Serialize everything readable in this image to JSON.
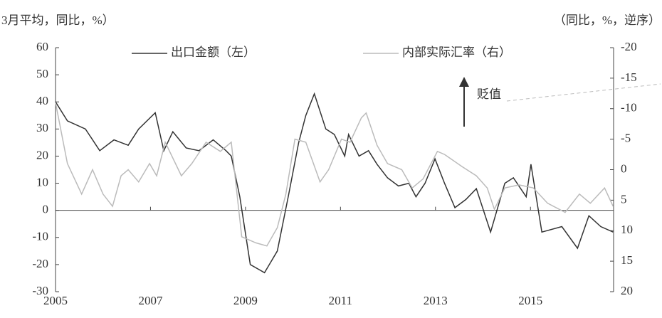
{
  "chart_data": {
    "type": "line",
    "title_left": "3月平均，同比，%）",
    "title_right": "（同比，%，逆序）",
    "annotation": "贬值",
    "xlim": [
      2005,
      2016.75
    ],
    "xticks": [
      2005,
      2007,
      2009,
      2011,
      2013,
      2015
    ],
    "ylim": [
      -30,
      60
    ],
    "yticks": [
      -30,
      -20,
      -10,
      0,
      10,
      20,
      30,
      40,
      50,
      60
    ],
    "y2lim": [
      -20,
      20
    ],
    "y2ticks": [
      -20,
      -15,
      -10,
      -5,
      0,
      5,
      10,
      15,
      20
    ],
    "y2_reversed": true,
    "series": [
      {
        "name": "出口金额（左）",
        "color": "#333333",
        "x": [
          2005.0,
          2005.25,
          2005.63,
          2005.93,
          2006.23,
          2006.53,
          2006.75,
          2007.1,
          2007.28,
          2007.47,
          2007.75,
          2008.02,
          2008.32,
          2008.59,
          2008.7,
          2008.88,
          2009.1,
          2009.4,
          2009.67,
          2009.9,
          2010.12,
          2010.27,
          2010.45,
          2010.69,
          2010.87,
          2011.09,
          2011.17,
          2011.39,
          2011.59,
          2011.77,
          2011.99,
          2012.22,
          2012.44,
          2012.59,
          2012.78,
          2012.99,
          2013.19,
          2013.41,
          2013.64,
          2013.86,
          2014.16,
          2014.46,
          2014.64,
          2014.91,
          2015.01,
          2015.24,
          2015.66,
          2015.99,
          2016.23,
          2016.48,
          2016.74
        ],
        "values": [
          40,
          33,
          30,
          22,
          26,
          24,
          30,
          36,
          22,
          29,
          23,
          22,
          26,
          22,
          20,
          5,
          -20,
          -23,
          -15,
          5,
          25,
          35,
          43,
          30,
          28,
          20,
          28,
          20,
          22,
          17,
          12,
          9,
          10,
          5,
          10,
          19,
          10,
          1,
          4,
          8,
          -8,
          10,
          12,
          5,
          17,
          -8,
          -6,
          -14,
          -2,
          -6,
          -8
        ]
      },
      {
        "name": "内部实际汇率（右）",
        "color": "#bbbbbb",
        "axis": "y2",
        "x": [
          2005.0,
          2005.25,
          2005.55,
          2005.78,
          2006.0,
          2006.2,
          2006.38,
          2006.53,
          2006.75,
          2006.98,
          2007.13,
          2007.31,
          2007.65,
          2007.87,
          2008.17,
          2008.47,
          2008.7,
          2008.92,
          2009.22,
          2009.45,
          2009.67,
          2009.85,
          2010.04,
          2010.27,
          2010.57,
          2010.75,
          2011.02,
          2011.2,
          2011.44,
          2011.54,
          2011.77,
          2011.99,
          2012.29,
          2012.51,
          2012.74,
          2013.04,
          2013.19,
          2013.56,
          2013.86,
          2014.09,
          2014.24,
          2014.46,
          2014.76,
          2015.06,
          2015.36,
          2015.73,
          2016.03,
          2016.26,
          2016.56,
          2016.74
        ],
        "values": [
          -11,
          -1,
          4,
          0,
          4,
          6,
          1,
          0,
          2,
          -1,
          1,
          -4.5,
          1,
          -1,
          -4.5,
          -3,
          -4.5,
          11,
          12,
          12.5,
          9.5,
          4,
          -5,
          -4.5,
          2,
          0,
          -5,
          -4.5,
          -8.5,
          -9.3,
          -4,
          -1,
          0,
          3,
          1.5,
          -3,
          -2.5,
          -0.5,
          1,
          3,
          6.5,
          3,
          2.5,
          3,
          5.5,
          7,
          4,
          5.5,
          3,
          6
        ]
      }
    ]
  }
}
